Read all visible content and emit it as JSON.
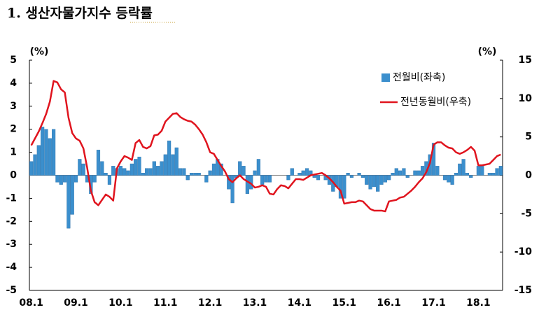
{
  "chart_data": {
    "type": "bar",
    "title": "1. 생산자물가지수 등락률",
    "ylabel": "(%)",
    "y2label": "(%)",
    "categories": [
      "08.1",
      null,
      null,
      null,
      null,
      null,
      null,
      null,
      null,
      null,
      null,
      null,
      "09.1",
      null,
      null,
      null,
      null,
      null,
      null,
      null,
      null,
      null,
      null,
      null,
      "10.1",
      null,
      null,
      null,
      null,
      null,
      null,
      null,
      null,
      null,
      null,
      null,
      "11.1",
      null,
      null,
      null,
      null,
      null,
      null,
      null,
      null,
      null,
      null,
      null,
      "12.1",
      null,
      null,
      null,
      null,
      null,
      null,
      null,
      null,
      null,
      null,
      null,
      "13.1",
      null,
      null,
      null,
      null,
      null,
      null,
      null,
      null,
      null,
      null,
      null,
      "14.1",
      null,
      null,
      null,
      null,
      null,
      null,
      null,
      null,
      null,
      null,
      null,
      "15.1",
      null,
      null,
      null,
      null,
      null,
      null,
      null,
      null,
      null,
      null,
      null,
      "16.1",
      null,
      null,
      null,
      null,
      null,
      null,
      null,
      null,
      null,
      null,
      null,
      "17.1",
      null,
      null,
      null,
      null,
      null,
      null,
      null,
      null,
      null,
      null,
      null,
      "18.1",
      null,
      null,
      null,
      null,
      null,
      null
    ],
    "series": [
      {
        "name": "전월비(좌축)",
        "color": "#3b8fcd",
        "type": "bar",
        "axis": "y",
        "values": [
          0.6,
          0.9,
          1.3,
          2.1,
          2.0,
          1.6,
          2.0,
          -0.3,
          -0.4,
          -0.3,
          -2.3,
          -1.7,
          -0.3,
          0.7,
          0.5,
          -0.3,
          -0.8,
          -0.3,
          1.1,
          0.6,
          0.1,
          -0.4,
          0.4,
          0.3,
          0.4,
          0.3,
          0.2,
          0.5,
          0.7,
          0.8,
          0.1,
          0.3,
          0.3,
          0.6,
          0.4,
          0.6,
          0.9,
          1.5,
          0.9,
          1.2,
          0.3,
          0.3,
          -0.2,
          0.1,
          0.1,
          0.1,
          0.0,
          -0.3,
          0.2,
          0.5,
          0.7,
          0.5,
          0.0,
          -0.6,
          -1.2,
          -0.1,
          0.6,
          0.4,
          -0.8,
          -0.6,
          0.2,
          0.7,
          -0.4,
          -0.3,
          -0.3,
          0.0,
          0.0,
          0.0,
          0.0,
          -0.2,
          0.3,
          0.0,
          0.1,
          0.2,
          0.3,
          0.2,
          -0.1,
          -0.2,
          0.0,
          -0.2,
          -0.4,
          -0.7,
          -0.5,
          -1.0,
          -1.0,
          0.1,
          -0.1,
          0.0,
          0.1,
          -0.1,
          -0.4,
          -0.6,
          -0.5,
          -0.7,
          -0.4,
          -0.3,
          -0.2,
          0.1,
          0.3,
          0.2,
          0.3,
          -0.1,
          0.0,
          0.2,
          0.2,
          0.4,
          0.6,
          0.9,
          1.4,
          0.4,
          0.0,
          -0.2,
          -0.3,
          -0.4,
          0.1,
          0.5,
          0.7,
          0.1,
          -0.1,
          0.0,
          0.4,
          0.4,
          0.0,
          0.1,
          0.1,
          0.3,
          0.4
        ]
      },
      {
        "name": "전년동월비(우축)",
        "color": "#e0141e",
        "type": "line",
        "axis": "y2",
        "values": [
          3.9,
          4.8,
          5.7,
          6.8,
          8.0,
          9.6,
          12.3,
          12.1,
          11.2,
          10.8,
          7.5,
          5.5,
          4.8,
          4.5,
          3.5,
          1.0,
          -2.0,
          -3.5,
          -3.9,
          -3.2,
          -2.5,
          -2.8,
          -3.3,
          0.9,
          1.8,
          2.5,
          2.3,
          2.0,
          4.2,
          4.6,
          3.7,
          3.5,
          3.8,
          5.2,
          5.3,
          5.8,
          7.0,
          7.5,
          8.0,
          8.1,
          7.6,
          7.3,
          7.1,
          7.0,
          6.6,
          6.0,
          5.3,
          4.3,
          3.0,
          2.8,
          2.0,
          1.2,
          0.5,
          -0.5,
          -0.9,
          -0.4,
          0.0,
          -0.5,
          -0.8,
          -1.1,
          -1.6,
          -1.5,
          -1.3,
          -1.5,
          -2.4,
          -2.5,
          -1.8,
          -1.3,
          -1.4,
          -1.7,
          -1.1,
          -0.5,
          -0.5,
          -0.6,
          -0.3,
          0.0,
          0.1,
          0.2,
          0.3,
          0.0,
          -0.4,
          -0.9,
          -1.5,
          -2.0,
          -3.7,
          -3.6,
          -3.5,
          -3.5,
          -3.3,
          -3.4,
          -3.9,
          -4.4,
          -4.6,
          -4.6,
          -4.6,
          -4.7,
          -3.4,
          -3.3,
          -3.2,
          -2.9,
          -2.8,
          -2.4,
          -2.0,
          -1.5,
          -0.9,
          -0.4,
          0.4,
          1.6,
          4.0,
          4.3,
          4.3,
          3.9,
          3.6,
          3.5,
          3.0,
          2.8,
          3.0,
          3.3,
          3.7,
          3.2,
          1.3,
          1.3,
          1.4,
          1.5,
          2.0,
          2.5,
          2.7
        ]
      }
    ],
    "ylim": [
      -5,
      5
    ],
    "yticks": [
      -5,
      -4,
      -3,
      -2,
      -1,
      0,
      1,
      2,
      3,
      4,
      5
    ],
    "y2lim": [
      -15,
      15
    ],
    "y2ticks": [
      -15,
      -10,
      -5,
      0,
      5,
      10,
      15
    ]
  }
}
